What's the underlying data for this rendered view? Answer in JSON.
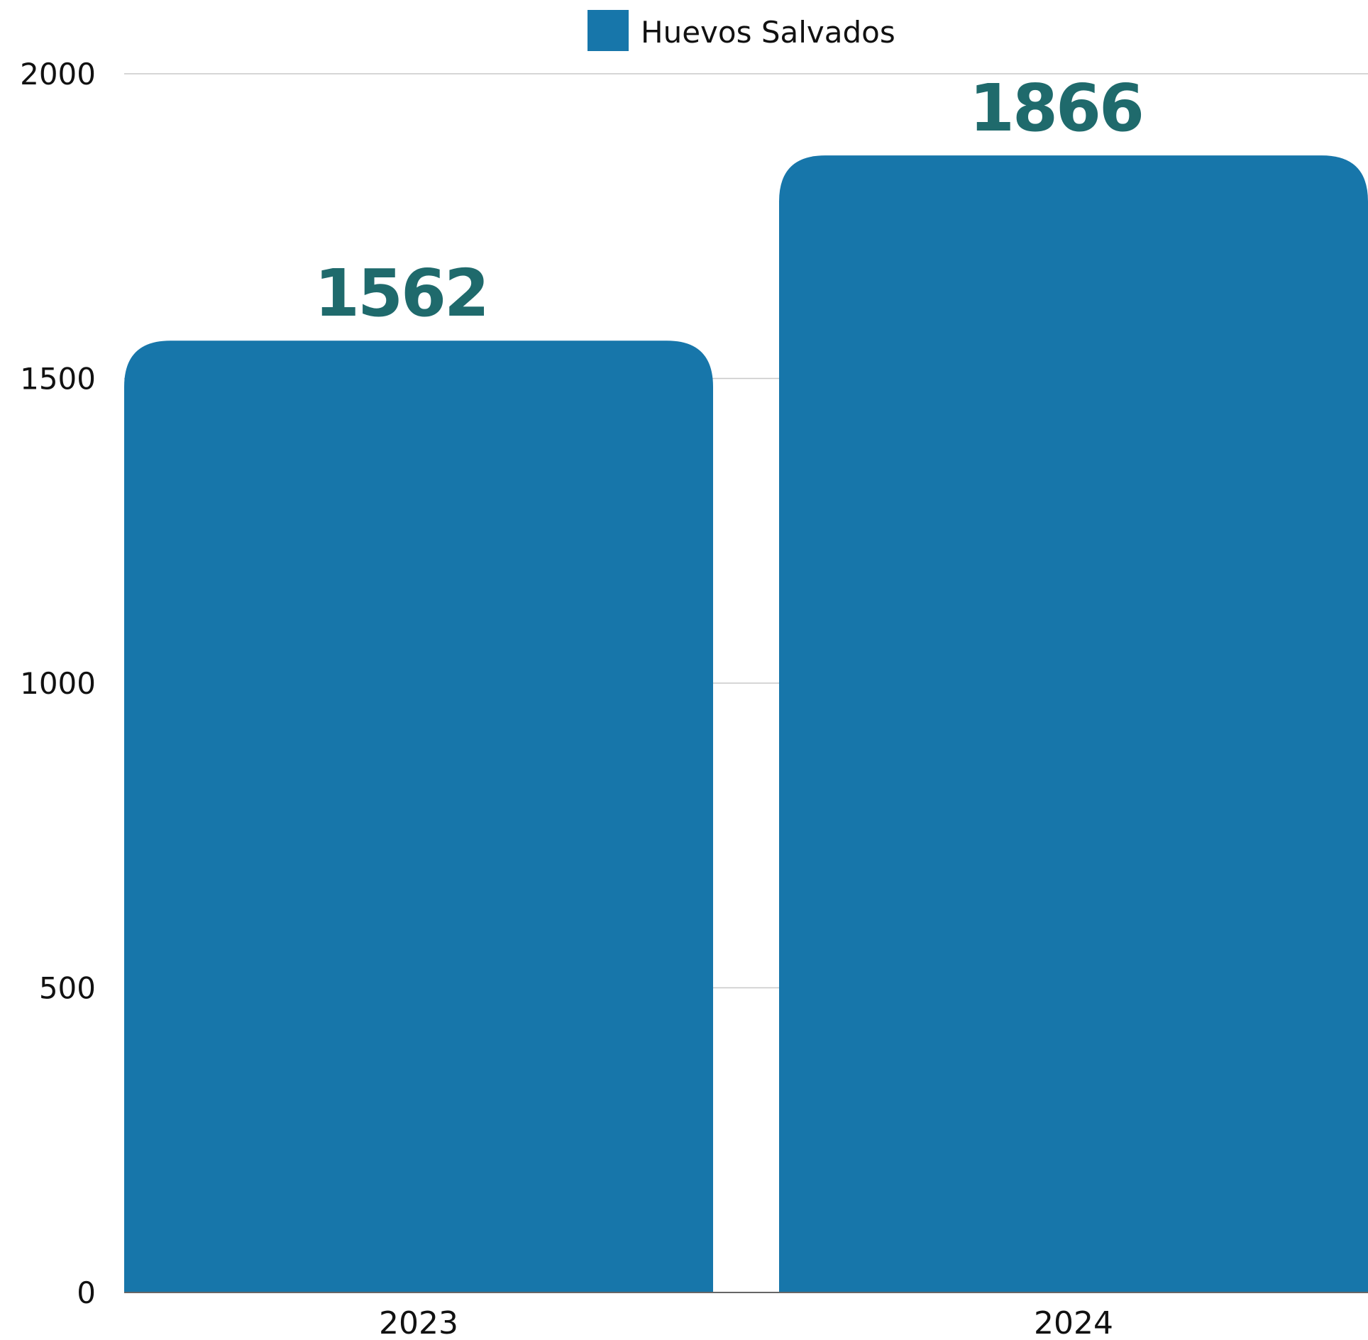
{
  "chart_data": {
    "type": "bar",
    "categories": [
      "2023",
      "2024"
    ],
    "series": [
      {
        "name": "Huevos Salvados",
        "values": [
          1562,
          1866
        ]
      }
    ],
    "data_labels": [
      "1562",
      "1866"
    ],
    "ylim": [
      0,
      2000
    ],
    "yticks": [
      0,
      500,
      1000,
      1500,
      2000
    ],
    "ytick_labels": [
      "0",
      "500",
      "1000",
      "1500",
      "2000"
    ],
    "grid": true,
    "legend_position": "top-center",
    "colors": {
      "bar": "#1776aa",
      "value_label": "#1f6a6c",
      "grid": "#c8c8c8",
      "axis": "#666666"
    }
  }
}
